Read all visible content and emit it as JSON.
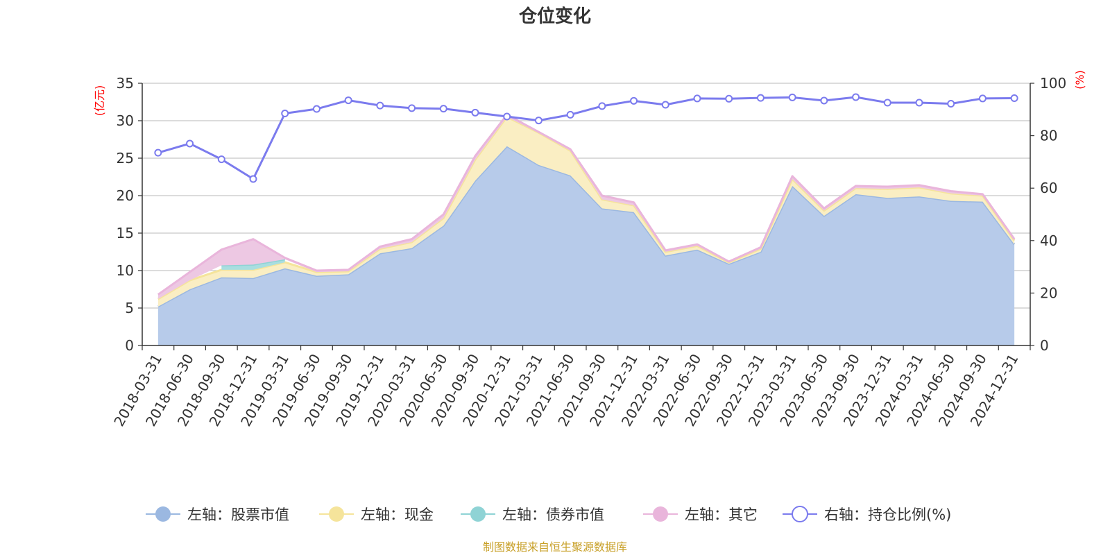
{
  "chart_data": {
    "type": "area",
    "title": "仓位变化",
    "left_axis": {
      "unit_label": "(亿元)",
      "ylim": [
        0,
        35
      ],
      "ticks": [
        0,
        5,
        10,
        15,
        20,
        25,
        30,
        35
      ]
    },
    "right_axis": {
      "unit_label": "(%)",
      "ylim": [
        0,
        100
      ],
      "ticks": [
        0,
        20,
        40,
        60,
        80,
        100
      ]
    },
    "grid": true,
    "legend_position": "bottom",
    "categories": [
      "2018-03-31",
      "2018-06-30",
      "2018-09-30",
      "2018-12-31",
      "2019-03-31",
      "2019-06-30",
      "2019-09-30",
      "2019-12-31",
      "2020-03-31",
      "2020-06-30",
      "2020-09-30",
      "2020-12-31",
      "2021-03-31",
      "2021-06-30",
      "2021-09-30",
      "2021-12-31",
      "2022-03-31",
      "2022-06-30",
      "2022-09-30",
      "2022-12-31",
      "2023-03-31",
      "2023-06-30",
      "2023-09-30",
      "2023-12-31",
      "2024-03-31",
      "2024-06-30",
      "2024-09-30",
      "2024-12-31"
    ],
    "series": [
      {
        "name": "左轴：股票市值",
        "axis": "left",
        "kind": "stacked-area",
        "color": "#9bb8e1",
        "fill": "#b7cbea",
        "values": [
          5.2,
          7.5,
          9.1,
          9.0,
          10.3,
          9.3,
          9.5,
          12.3,
          13.0,
          16.0,
          22.0,
          26.6,
          24.1,
          22.7,
          18.3,
          17.8,
          12.0,
          12.8,
          10.9,
          12.5,
          21.3,
          17.3,
          20.2,
          19.7,
          19.9,
          19.3,
          19.2,
          13.5
        ]
      },
      {
        "name": "左轴：现金",
        "axis": "left",
        "kind": "stacked-area",
        "color": "#f5e49b",
        "fill": "#faeec3",
        "values": [
          1.0,
          1.2,
          1.0,
          1.1,
          0.8,
          0.5,
          0.4,
          0.6,
          0.8,
          1.0,
          2.8,
          3.9,
          4.3,
          3.3,
          1.2,
          0.9,
          0.5,
          0.5,
          0.2,
          0.4,
          0.9,
          0.7,
          0.8,
          1.2,
          1.2,
          1.0,
          0.8,
          0.5
        ]
      },
      {
        "name": "左轴：债券市值",
        "axis": "left",
        "kind": "stacked-area",
        "color": "#8fd3d5",
        "fill": "#a9dee0",
        "values": [
          0,
          0,
          0.6,
          0.7,
          0.4,
          0,
          0,
          0,
          0,
          0,
          0,
          0,
          0,
          0,
          0,
          0,
          0,
          0,
          0,
          0,
          0,
          0,
          0,
          0,
          0,
          0,
          0,
          0
        ]
      },
      {
        "name": "左轴：其它",
        "axis": "left",
        "kind": "stacked-area",
        "color": "#e9b5db",
        "fill": "#edc8e3",
        "values": [
          0.6,
          1.1,
          2.1,
          3.4,
          0.2,
          0.2,
          0.2,
          0.3,
          0.4,
          0.5,
          0.5,
          0.3,
          0.1,
          0.2,
          0.5,
          0.4,
          0.2,
          0.2,
          0.1,
          0.2,
          0.4,
          0.3,
          0.3,
          0.3,
          0.3,
          0.3,
          0.2,
          0.2
        ]
      },
      {
        "name": "右轴：持仓比例(%)",
        "axis": "right",
        "kind": "line",
        "color": "#7b7bee",
        "values": [
          73.5,
          77.0,
          71.0,
          63.5,
          88.5,
          90.2,
          93.5,
          91.5,
          90.5,
          90.3,
          88.8,
          87.3,
          85.8,
          88.0,
          91.3,
          93.3,
          91.8,
          94.2,
          94.1,
          94.4,
          94.6,
          93.4,
          94.7,
          92.6,
          92.6,
          92.2,
          94.2,
          94.3
        ]
      }
    ]
  },
  "source_text": "制图数据来自恒生聚源数据库"
}
